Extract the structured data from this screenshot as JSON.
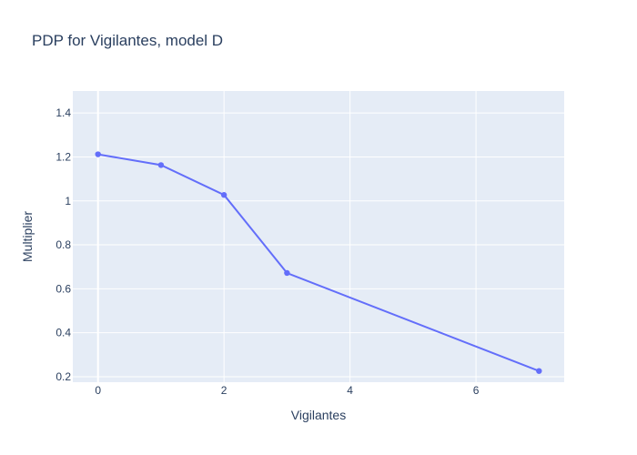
{
  "chart_data": {
    "type": "line",
    "title": "PDP for Vigilantes, model D",
    "xlabel": "Vigilantes",
    "ylabel": "Multiplier",
    "x": [
      0,
      1,
      2,
      3,
      7
    ],
    "y": [
      1.212,
      1.163,
      1.027,
      0.672,
      0.226
    ],
    "xlim": [
      -0.4,
      7.4
    ],
    "ylim": [
      0.175,
      1.5
    ],
    "xticks": [
      0,
      2,
      4,
      6
    ],
    "xtick_labels": [
      "0",
      "2",
      "4",
      "6"
    ],
    "yticks": [
      0.2,
      0.4,
      0.6,
      0.8,
      1.0,
      1.2,
      1.4
    ],
    "ytick_labels": [
      "0.2",
      "0.4",
      "0.6",
      "0.8",
      "1",
      "1.2",
      "1.4"
    ],
    "grid": true,
    "line_color": "#636efa",
    "plot_bg": "#e5ecf6",
    "grid_color": "#ffffff"
  }
}
